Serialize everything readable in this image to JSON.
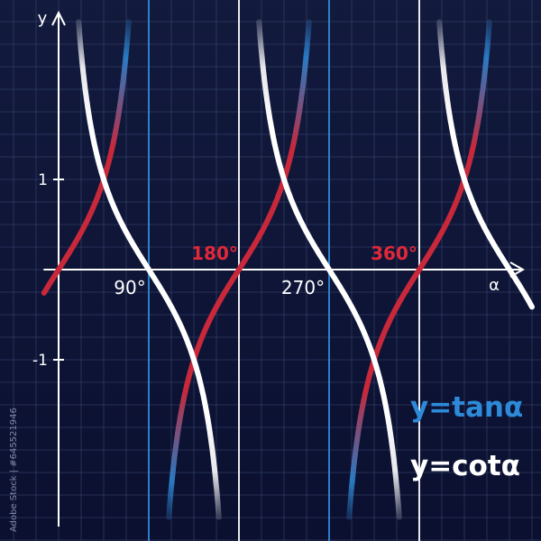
{
  "chart_data": {
    "type": "line",
    "xlabel": "α",
    "ylabel": "y",
    "x_unit": "degrees",
    "xlim": [
      0,
      500
    ],
    "ylim": [
      -2.8,
      2.8
    ],
    "grid": true,
    "x_tick_labels": [
      {
        "value": 90,
        "label": "90°",
        "color": "#ffffff"
      },
      {
        "value": 180,
        "label": "180°",
        "color": "#e0283a"
      },
      {
        "value": 270,
        "label": "270°",
        "color": "#ffffff"
      },
      {
        "value": 360,
        "label": "360°",
        "color": "#e0283a"
      }
    ],
    "y_tick_labels": [
      {
        "value": 1,
        "label": "1"
      },
      {
        "value": -1,
        "label": "-1"
      }
    ],
    "asymptotes": [
      {
        "x": 0,
        "color": "#ffffff"
      },
      {
        "x": 90,
        "color": "#2d8ad8"
      },
      {
        "x": 180,
        "color": "#ffffff"
      },
      {
        "x": 270,
        "color": "#2d8ad8"
      },
      {
        "x": 360,
        "color": "#ffffff"
      }
    ],
    "series": [
      {
        "name": "y=tanα",
        "function": "tan",
        "legend_color": "#2d8ad8",
        "line_color": "#c8283a",
        "x": [
          0,
          15,
          30,
          45,
          60,
          75,
          105,
          120,
          135,
          150,
          165,
          180,
          195,
          210,
          225,
          240,
          255,
          285,
          300,
          315,
          330,
          345,
          360,
          375,
          390,
          405,
          420,
          435
        ],
        "y": [
          0,
          0.27,
          0.58,
          1,
          1.73,
          3.73,
          -3.73,
          -1.73,
          -1,
          -0.58,
          -0.27,
          0,
          0.27,
          0.58,
          1,
          1.73,
          3.73,
          -3.73,
          -1.73,
          -1,
          -0.58,
          -0.27,
          0,
          0.27,
          0.58,
          1,
          1.73,
          3.73
        ]
      },
      {
        "name": "y=cotα",
        "function": "cot",
        "legend_color": "#ffffff",
        "line_color": "#ffffff",
        "x": [
          15,
          30,
          45,
          60,
          75,
          90,
          105,
          120,
          135,
          150,
          165,
          195,
          210,
          225,
          240,
          255,
          270,
          285,
          300,
          315,
          330,
          345,
          375,
          390,
          405,
          420,
          435
        ],
        "y": [
          3.73,
          1.73,
          1,
          0.58,
          0.27,
          0,
          -0.27,
          -0.58,
          -1,
          -1.73,
          -3.73,
          3.73,
          1.73,
          1,
          0.58,
          0.27,
          0,
          -0.27,
          -0.58,
          -1,
          -1.73,
          -3.73,
          3.73,
          1.73,
          1,
          0.58,
          0.27
        ]
      }
    ]
  },
  "side_caption": "Adobe Stock | #645521946"
}
